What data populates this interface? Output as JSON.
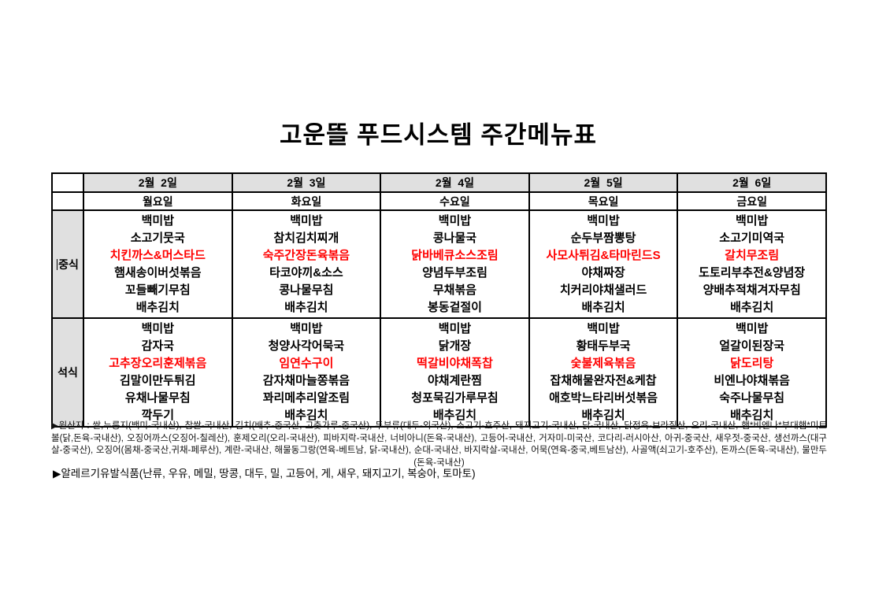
{
  "title": "고운뜰 푸드시스템 주간메뉴표",
  "colors": {
    "highlight_red": "#FF0000",
    "header_gray": "#E0E0E0",
    "border_black": "#000000"
  },
  "table": {
    "days": [
      {
        "date": "2월  2일",
        "weekday": "월요일"
      },
      {
        "date": "2월  3일",
        "weekday": "화요일"
      },
      {
        "date": "2월  4일",
        "weekday": "수요일"
      },
      {
        "date": "2월  5일",
        "weekday": "목요일"
      },
      {
        "date": "2월  6일",
        "weekday": "금요일"
      }
    ],
    "meals": [
      {
        "id": "lunch",
        "label": "중식",
        "cursor": true,
        "columns": [
          {
            "items": [
              {
                "text": "백미밥",
                "red": false
              },
              {
                "text": "소고기뭇국",
                "red": false
              },
              {
                "text": "치킨까스&머스타드",
                "red": true
              },
              {
                "text": "햄새송이버섯볶음",
                "red": false
              },
              {
                "text": "꼬들빼기무침",
                "red": false
              },
              {
                "text": "배추김치",
                "red": false
              }
            ]
          },
          {
            "items": [
              {
                "text": "백미밥",
                "red": false
              },
              {
                "text": "참치김치찌개",
                "red": false
              },
              {
                "text": "숙주간장돈육볶음",
                "red": true
              },
              {
                "text": "타코야끼&소스",
                "red": false
              },
              {
                "text": "콩나물무침",
                "red": false
              },
              {
                "text": "배추김치",
                "red": false
              }
            ]
          },
          {
            "items": [
              {
                "text": "백미밥",
                "red": false
              },
              {
                "text": "콩나물국",
                "red": false
              },
              {
                "text": "닭바베큐소스조림",
                "red": true
              },
              {
                "text": "양념두부조림",
                "red": false
              },
              {
                "text": "무채볶음",
                "red": false
              },
              {
                "text": "봉동겉절이",
                "red": false
              }
            ]
          },
          {
            "items": [
              {
                "text": "백미밥",
                "red": false
              },
              {
                "text": "순두부짬뽕탕",
                "red": false
              },
              {
                "text": "사모사튀김&타마린드S",
                "red": true
              },
              {
                "text": "야채짜장",
                "red": false
              },
              {
                "text": "치커리야채샐러드",
                "red": false
              },
              {
                "text": "배추김치",
                "red": false
              }
            ]
          },
          {
            "items": [
              {
                "text": "백미밥",
                "red": false
              },
              {
                "text": "소고기미역국",
                "red": false
              },
              {
                "text": "갈치무조림",
                "red": true
              },
              {
                "text": "도토리부추전&양념장",
                "red": false
              },
              {
                "text": "양배추적채겨자무침",
                "red": false
              },
              {
                "text": "배추김치",
                "red": false
              }
            ]
          }
        ]
      },
      {
        "id": "dinner",
        "label": "석식",
        "cursor": false,
        "columns": [
          {
            "items": [
              {
                "text": "백미밥",
                "red": false
              },
              {
                "text": "감자국",
                "red": false
              },
              {
                "text": "고추장오리훈제볶음",
                "red": true
              },
              {
                "text": "김말이만두튀김",
                "red": false
              },
              {
                "text": "유채나물무침",
                "red": false
              },
              {
                "text": "깍두기",
                "red": false
              }
            ]
          },
          {
            "items": [
              {
                "text": "백미밥",
                "red": false
              },
              {
                "text": "청양사각어묵국",
                "red": false
              },
              {
                "text": "임연수구이",
                "red": true
              },
              {
                "text": "감자채마늘쫑볶음",
                "red": false
              },
              {
                "text": "꽈리메추리알조림",
                "red": false
              },
              {
                "text": "배추김치",
                "red": false
              }
            ]
          },
          {
            "items": [
              {
                "text": "백미밥",
                "red": false
              },
              {
                "text": "닭개장",
                "red": false
              },
              {
                "text": "떡갈비야채폭찹",
                "red": true
              },
              {
                "text": "야채계란찜",
                "red": false
              },
              {
                "text": "청포묵김가루무침",
                "red": false
              },
              {
                "text": "배추김치",
                "red": false
              }
            ]
          },
          {
            "items": [
              {
                "text": "백미밥",
                "red": false
              },
              {
                "text": "황태두부국",
                "red": false
              },
              {
                "text": "숯불제육볶음",
                "red": true
              },
              {
                "text": "잡채해물완자전&케찹",
                "red": false
              },
              {
                "text": "애호박느타리버섯볶음",
                "red": false
              },
              {
                "text": "배추김치",
                "red": false
              }
            ]
          },
          {
            "items": [
              {
                "text": "백미밥",
                "red": false
              },
              {
                "text": "얼갈이된장국",
                "red": false
              },
              {
                "text": "닭도리탕",
                "red": true
              },
              {
                "text": "비엔나야채볶음",
                "red": false
              },
              {
                "text": "숙주나물무침",
                "red": false
              },
              {
                "text": "배추김치",
                "red": false
              }
            ]
          }
        ]
      }
    ]
  },
  "footer": {
    "origin": "▶원산지 : 쌀,누룽지(백미-국내산), 찹쌀-국내산, 김치(배추-중국산, 고춧가루-중국산), 두부류(대두-외국산), 소고기-호주산, 돼지고기-국내산, 닭-국내산, 닭정육-브라질산, 오리-국내산, 햄*비엔나*부대햄*미트볼(닭,돈육-국내산), 오징어까스(오징어-칠레산), 훈제오리(오리-국내산), 피바지락-국내산, 너비아니(돈육-국내산), 고등어-국내산, 거자미-미국산, 코다리-러시아산, 아귀-중국산, 새우젓-중국산, 생선까스(대구살-중국산), 오징어(몸채-중국산,귀채-페루산), 계란-국내산, 해물동그랑(연육-베트남, 닭-국내산), 순대-국내산, 바지락살-국내산, 어묵(연육-중국,베트남산), 사골액(쇠고기-호주산), 돈까스(돈육-국내산), 물만두(돈육-국내산)",
    "allergy": "▶알레르기유발식품(난류, 우유, 메밀, 땅콩, 대두, 밀, 고등어, 게, 새우, 돼지고기, 복숭아, 토마토)"
  }
}
